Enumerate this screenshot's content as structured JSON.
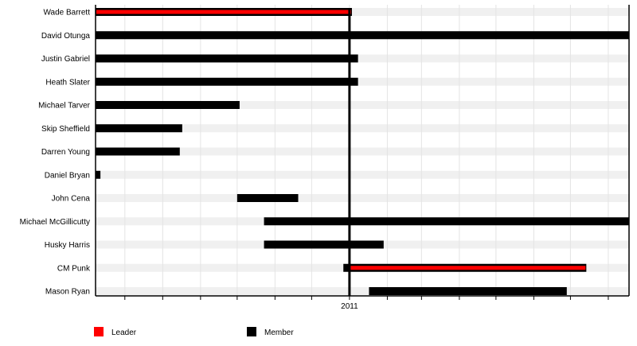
{
  "chart_data": {
    "type": "timeline",
    "title": "",
    "x_range": [
      "2010-06-07",
      "2011-08-18"
    ],
    "x_ticks": "monthly",
    "x_tick_labels": [
      {
        "date": "2011-01-01",
        "label": "2011"
      }
    ],
    "marker_line": "2011-01-01",
    "grid": true,
    "legend_position": "bottom-left",
    "legend": [
      {
        "key": "leader",
        "label": "Leader",
        "color": "#ff0000"
      },
      {
        "key": "member",
        "label": "Member",
        "color": "#000000"
      }
    ],
    "rows": [
      {
        "name": "Wade Barrett",
        "periods": [
          {
            "role": "leader",
            "start": "2010-06-07",
            "end": "2011-01-03"
          }
        ]
      },
      {
        "name": "David Otunga",
        "periods": [
          {
            "role": "member",
            "start": "2010-06-07",
            "end": "2011-08-18"
          }
        ]
      },
      {
        "name": "Justin Gabriel",
        "periods": [
          {
            "role": "member",
            "start": "2010-06-07",
            "end": "2011-01-08"
          }
        ]
      },
      {
        "name": "Heath Slater",
        "periods": [
          {
            "role": "member",
            "start": "2010-06-07",
            "end": "2011-01-08"
          }
        ]
      },
      {
        "name": "Michael Tarver",
        "periods": [
          {
            "role": "member",
            "start": "2010-06-07",
            "end": "2010-10-03"
          }
        ]
      },
      {
        "name": "Skip Sheffield",
        "periods": [
          {
            "role": "member",
            "start": "2010-06-07",
            "end": "2010-08-17"
          }
        ]
      },
      {
        "name": "Darren Young",
        "periods": [
          {
            "role": "member",
            "start": "2010-06-07",
            "end": "2010-08-15"
          }
        ]
      },
      {
        "name": "Daniel Bryan",
        "periods": [
          {
            "role": "member",
            "start": "2010-06-07",
            "end": "2010-06-11"
          }
        ]
      },
      {
        "name": "John Cena",
        "periods": [
          {
            "role": "member",
            "start": "2010-10-01",
            "end": "2010-11-20"
          }
        ]
      },
      {
        "name": "Michael McGillicutty",
        "periods": [
          {
            "role": "member",
            "start": "2010-10-23",
            "end": "2011-08-18"
          }
        ]
      },
      {
        "name": "Husky Harris",
        "periods": [
          {
            "role": "member",
            "start": "2010-10-23",
            "end": "2011-01-29"
          }
        ]
      },
      {
        "name": "CM Punk",
        "periods": [
          {
            "role": "member",
            "start": "2010-12-27",
            "end": "2011-01-01"
          },
          {
            "role": "leader",
            "start": "2011-01-01",
            "end": "2011-07-14"
          }
        ]
      },
      {
        "name": "Mason Ryan",
        "periods": [
          {
            "role": "member",
            "start": "2011-01-17",
            "end": "2011-06-28"
          }
        ]
      }
    ]
  }
}
